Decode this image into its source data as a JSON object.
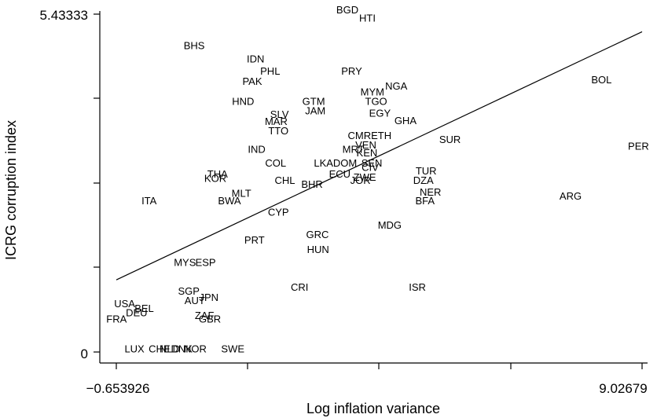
{
  "chart_data": {
    "type": "scatter",
    "xlabel": "Log inflation variance",
    "ylabel": "ICRG corruption index",
    "xlim": [
      -0.653926,
      9.02679
    ],
    "ylim": [
      0,
      5.43333
    ],
    "xtick_labels": [
      {
        "value": -0.653926,
        "text": "−0.653926"
      },
      {
        "value": 9.02679,
        "text": "9.02679"
      }
    ],
    "ytick_labels": [
      {
        "value": 0,
        "text": "0"
      },
      {
        "value": 5.43333,
        "text": "5.43333"
      }
    ],
    "fit_line": {
      "x": [
        -0.653926,
        9.02679
      ],
      "y": [
        1.16,
        5.15
      ]
    },
    "points": [
      {
        "label": "BGD",
        "x": 3.6,
        "y": 5.5
      },
      {
        "label": "HTI",
        "x": 3.97,
        "y": 5.37
      },
      {
        "label": "BHS",
        "x": 0.78,
        "y": 4.93
      },
      {
        "label": "IDN",
        "x": 1.91,
        "y": 4.71
      },
      {
        "label": "PHL",
        "x": 2.18,
        "y": 4.52
      },
      {
        "label": "PRY",
        "x": 3.68,
        "y": 4.52
      },
      {
        "label": "PAK",
        "x": 1.85,
        "y": 4.35
      },
      {
        "label": "BOL",
        "x": 8.28,
        "y": 4.38
      },
      {
        "label": "NGA",
        "x": 4.5,
        "y": 4.28
      },
      {
        "label": "MYM",
        "x": 4.06,
        "y": 4.18
      },
      {
        "label": "HND",
        "x": 1.68,
        "y": 4.03
      },
      {
        "label": "GTM",
        "x": 2.98,
        "y": 4.03
      },
      {
        "label": "TGO",
        "x": 4.13,
        "y": 4.03
      },
      {
        "label": "JAM",
        "x": 3.01,
        "y": 3.88
      },
      {
        "label": "EGY",
        "x": 4.2,
        "y": 3.84
      },
      {
        "label": "SLV",
        "x": 2.35,
        "y": 3.82
      },
      {
        "label": "GHA",
        "x": 4.67,
        "y": 3.72
      },
      {
        "label": "MAR",
        "x": 2.29,
        "y": 3.71
      },
      {
        "label": "TTO",
        "x": 2.33,
        "y": 3.56
      },
      {
        "label": "CMRETH",
        "x": 4.01,
        "y": 3.48
      },
      {
        "label": "SUR",
        "x": 5.49,
        "y": 3.42
      },
      {
        "label": "PER",
        "x": 8.96,
        "y": 3.31
      },
      {
        "label": "VEN",
        "x": 3.94,
        "y": 3.33
      },
      {
        "label": "IND",
        "x": 1.93,
        "y": 3.26
      },
      {
        "label": "MRT",
        "x": 3.71,
        "y": 3.26
      },
      {
        "label": "KEN",
        "x": 3.96,
        "y": 3.2
      },
      {
        "label": "COL",
        "x": 2.28,
        "y": 3.04
      },
      {
        "label": "LKADOM",
        "x": 3.38,
        "y": 3.04
      },
      {
        "label": "SEN",
        "x": 4.05,
        "y": 3.04
      },
      {
        "label": "CIV",
        "x": 4.02,
        "y": 2.97
      },
      {
        "label": "THA",
        "x": 1.21,
        "y": 2.86
      },
      {
        "label": "TUR",
        "x": 5.05,
        "y": 2.91
      },
      {
        "label": "KOR",
        "x": 1.17,
        "y": 2.79
      },
      {
        "label": "ECU",
        "x": 3.46,
        "y": 2.86
      },
      {
        "label": "ZWE",
        "x": 3.92,
        "y": 2.81
      },
      {
        "label": "CHL",
        "x": 2.45,
        "y": 2.76
      },
      {
        "label": "JOR",
        "x": 3.84,
        "y": 2.76
      },
      {
        "label": "DZA",
        "x": 5.0,
        "y": 2.76
      },
      {
        "label": "BHR",
        "x": 2.95,
        "y": 2.7
      },
      {
        "label": "NER",
        "x": 5.13,
        "y": 2.57
      },
      {
        "label": "MLT",
        "x": 1.65,
        "y": 2.55
      },
      {
        "label": "ARG",
        "x": 7.71,
        "y": 2.51
      },
      {
        "label": "ITA",
        "x": -0.05,
        "y": 2.43
      },
      {
        "label": "BWA",
        "x": 1.43,
        "y": 2.43
      },
      {
        "label": "BFA",
        "x": 5.03,
        "y": 2.43
      },
      {
        "label": "CYP",
        "x": 2.33,
        "y": 2.25
      },
      {
        "label": "MDG",
        "x": 4.38,
        "y": 2.04
      },
      {
        "label": "GRC",
        "x": 3.05,
        "y": 1.89
      },
      {
        "label": "PRT",
        "x": 1.89,
        "y": 1.8
      },
      {
        "label": "HUN",
        "x": 3.06,
        "y": 1.65
      },
      {
        "label": "MYS",
        "x": 0.61,
        "y": 1.44
      },
      {
        "label": "ESP",
        "x": 0.99,
        "y": 1.44
      },
      {
        "label": "CRI",
        "x": 2.72,
        "y": 1.04
      },
      {
        "label": "ISR",
        "x": 4.89,
        "y": 1.04
      },
      {
        "label": "SGP",
        "x": 0.68,
        "y": 0.98
      },
      {
        "label": "JPN",
        "x": 1.05,
        "y": 0.88
      },
      {
        "label": "AUT",
        "x": 0.79,
        "y": 0.83
      },
      {
        "label": "USA",
        "x": -0.5,
        "y": 0.78
      },
      {
        "label": "BEL",
        "x": -0.14,
        "y": 0.7
      },
      {
        "label": "DEU",
        "x": -0.28,
        "y": 0.63
      },
      {
        "label": "FRA",
        "x": -0.65,
        "y": 0.53
      },
      {
        "label": "ZAF",
        "x": 0.97,
        "y": 0.59
      },
      {
        "label": "GBR",
        "x": 1.07,
        "y": 0.53
      },
      {
        "label": "LUX",
        "x": -0.32,
        "y": 0.05
      },
      {
        "label": "CHE",
        "x": 0.14,
        "y": 0.05
      },
      {
        "label": "NLD",
        "x": 0.33,
        "y": 0.05
      },
      {
        "label": "DNK",
        "x": 0.55,
        "y": 0.05
      },
      {
        "label": "NOR",
        "x": 0.8,
        "y": 0.05
      },
      {
        "label": "SWE",
        "x": 1.49,
        "y": 0.05
      }
    ]
  }
}
